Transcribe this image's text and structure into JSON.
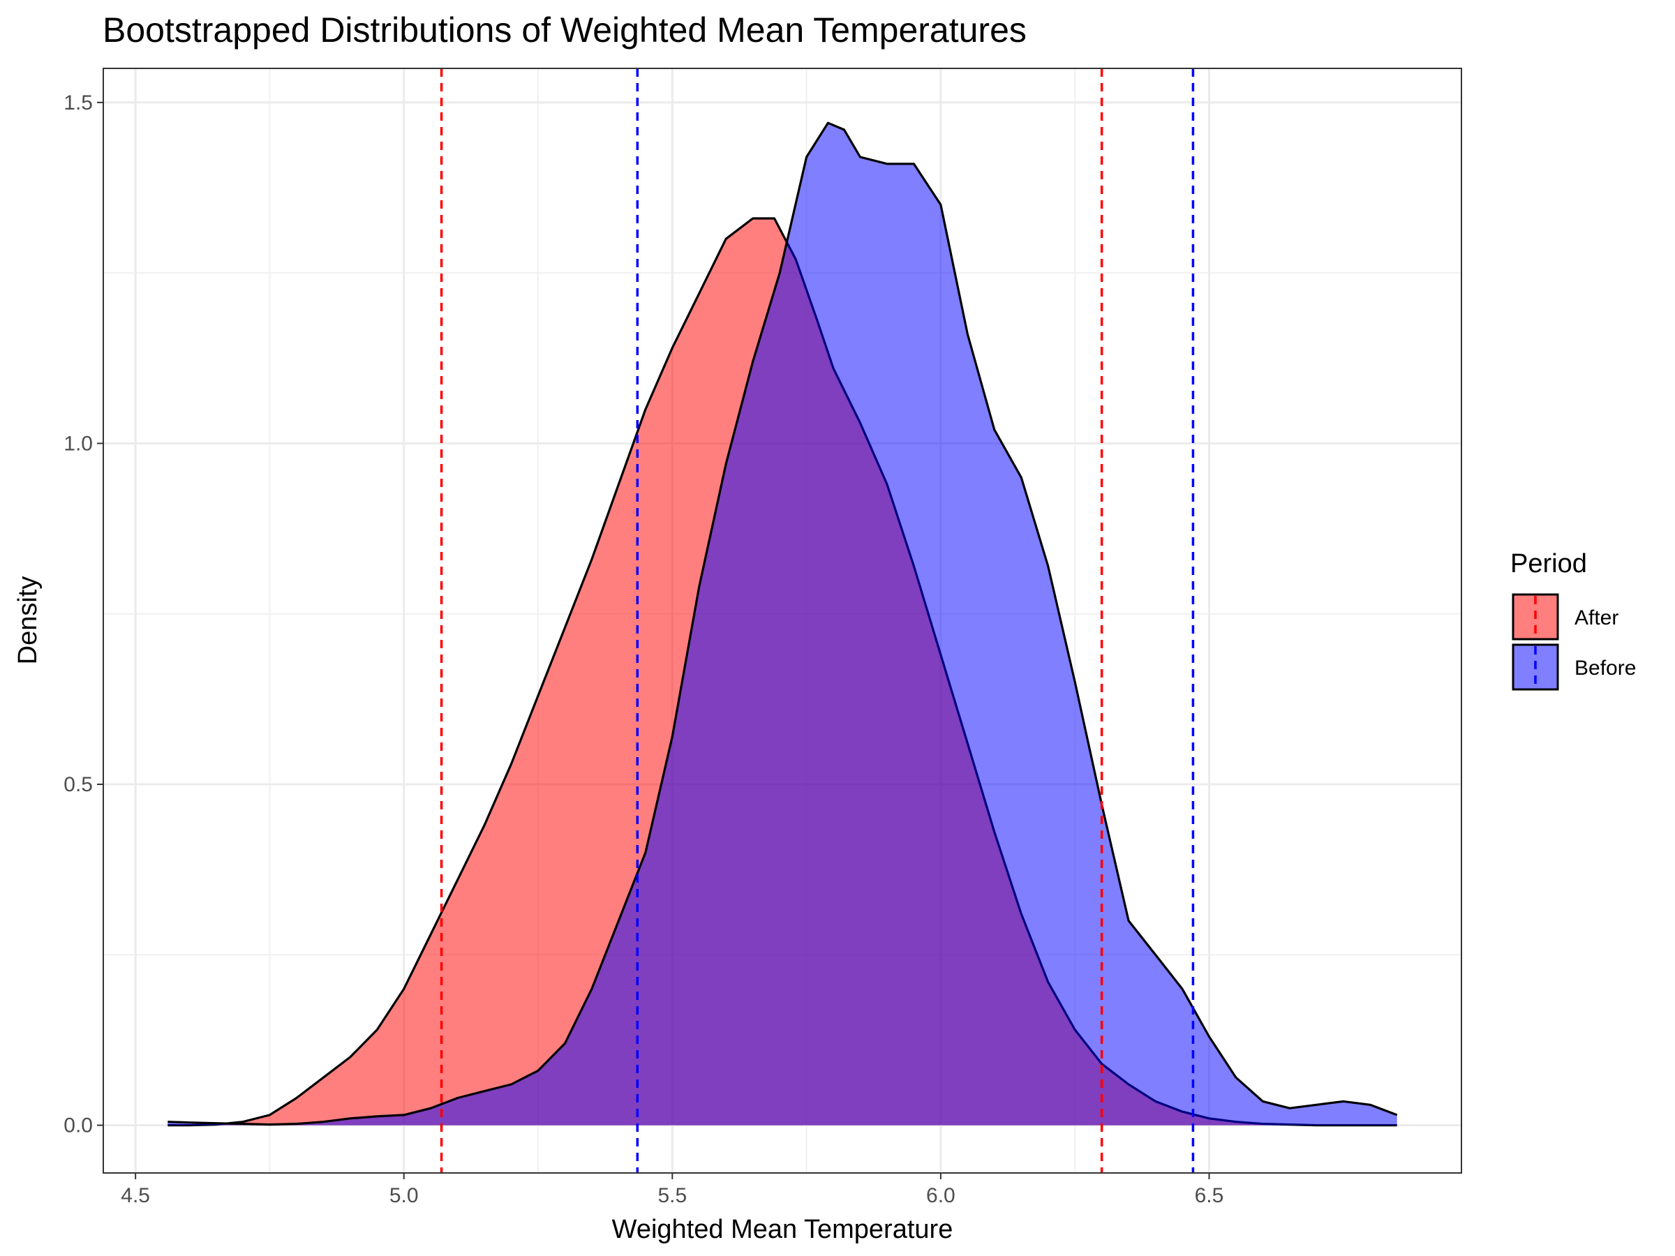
{
  "chart_data": {
    "type": "area",
    "title": "Bootstrapped Distributions of Weighted Mean Temperatures",
    "xlabel": "Weighted Mean Temperature",
    "ylabel": "Density",
    "xlim": [
      4.44,
      6.97
    ],
    "ylim": [
      -0.07,
      1.55
    ],
    "xticks": [
      4.5,
      5.0,
      5.5,
      6.0,
      6.5
    ],
    "xtick_labels": [
      "4.5",
      "5.0",
      "5.5",
      "6.0",
      "6.5"
    ],
    "yticks": [
      0.0,
      0.5,
      1.0,
      1.5
    ],
    "ytick_labels": [
      "0.0",
      "0.5",
      "1.0",
      "1.5"
    ],
    "grid": true,
    "legend": {
      "title": "Period",
      "position": "right"
    },
    "series": [
      {
        "name": "After",
        "color": "#FF0000",
        "fill_opacity": 0.5,
        "x": [
          4.56,
          4.6,
          4.65,
          4.7,
          4.75,
          4.8,
          4.85,
          4.9,
          4.95,
          5.0,
          5.05,
          5.1,
          5.15,
          5.2,
          5.25,
          5.3,
          5.35,
          5.4,
          5.45,
          5.5,
          5.55,
          5.6,
          5.65,
          5.69,
          5.73,
          5.77,
          5.8,
          5.85,
          5.9,
          5.95,
          6.0,
          6.05,
          6.1,
          6.15,
          6.2,
          6.25,
          6.3,
          6.35,
          6.4,
          6.45,
          6.5,
          6.55,
          6.6,
          6.65,
          6.7,
          6.75,
          6.8,
          6.85
        ],
        "y": [
          0.0,
          0.0,
          0.001,
          0.005,
          0.015,
          0.04,
          0.07,
          0.1,
          0.14,
          0.2,
          0.28,
          0.36,
          0.44,
          0.53,
          0.63,
          0.73,
          0.83,
          0.94,
          1.05,
          1.14,
          1.22,
          1.3,
          1.33,
          1.33,
          1.27,
          1.18,
          1.11,
          1.03,
          0.94,
          0.82,
          0.69,
          0.56,
          0.43,
          0.31,
          0.21,
          0.14,
          0.09,
          0.06,
          0.035,
          0.02,
          0.01,
          0.005,
          0.002,
          0.001,
          0.0,
          0.0,
          0.0,
          0.0
        ]
      },
      {
        "name": "Before",
        "color": "#0000FF",
        "fill_opacity": 0.5,
        "x": [
          4.56,
          4.6,
          4.65,
          4.7,
          4.75,
          4.8,
          4.85,
          4.9,
          4.95,
          5.0,
          5.05,
          5.1,
          5.15,
          5.2,
          5.25,
          5.3,
          5.35,
          5.4,
          5.45,
          5.5,
          5.55,
          5.6,
          5.65,
          5.7,
          5.75,
          5.79,
          5.82,
          5.85,
          5.9,
          5.95,
          6.0,
          6.05,
          6.1,
          6.15,
          6.2,
          6.25,
          6.3,
          6.35,
          6.4,
          6.45,
          6.5,
          6.55,
          6.6,
          6.65,
          6.7,
          6.75,
          6.8,
          6.85
        ],
        "y": [
          0.005,
          0.004,
          0.003,
          0.002,
          0.001,
          0.002,
          0.005,
          0.01,
          0.013,
          0.015,
          0.025,
          0.04,
          0.05,
          0.06,
          0.08,
          0.12,
          0.2,
          0.3,
          0.4,
          0.57,
          0.79,
          0.97,
          1.12,
          1.25,
          1.42,
          1.47,
          1.46,
          1.42,
          1.41,
          1.41,
          1.35,
          1.16,
          1.02,
          0.95,
          0.82,
          0.65,
          0.47,
          0.3,
          0.25,
          0.2,
          0.13,
          0.07,
          0.035,
          0.025,
          0.03,
          0.035,
          0.03,
          0.015
        ]
      }
    ],
    "vlines": [
      {
        "series": "After",
        "x": 5.07,
        "color": "#FF0000",
        "style": "dashed"
      },
      {
        "series": "After",
        "x": 6.3,
        "color": "#FF0000",
        "style": "dashed"
      },
      {
        "series": "Before",
        "x": 5.435,
        "color": "#0000FF",
        "style": "dashed"
      },
      {
        "series": "Before",
        "x": 6.47,
        "color": "#0000FF",
        "style": "dashed"
      }
    ]
  }
}
